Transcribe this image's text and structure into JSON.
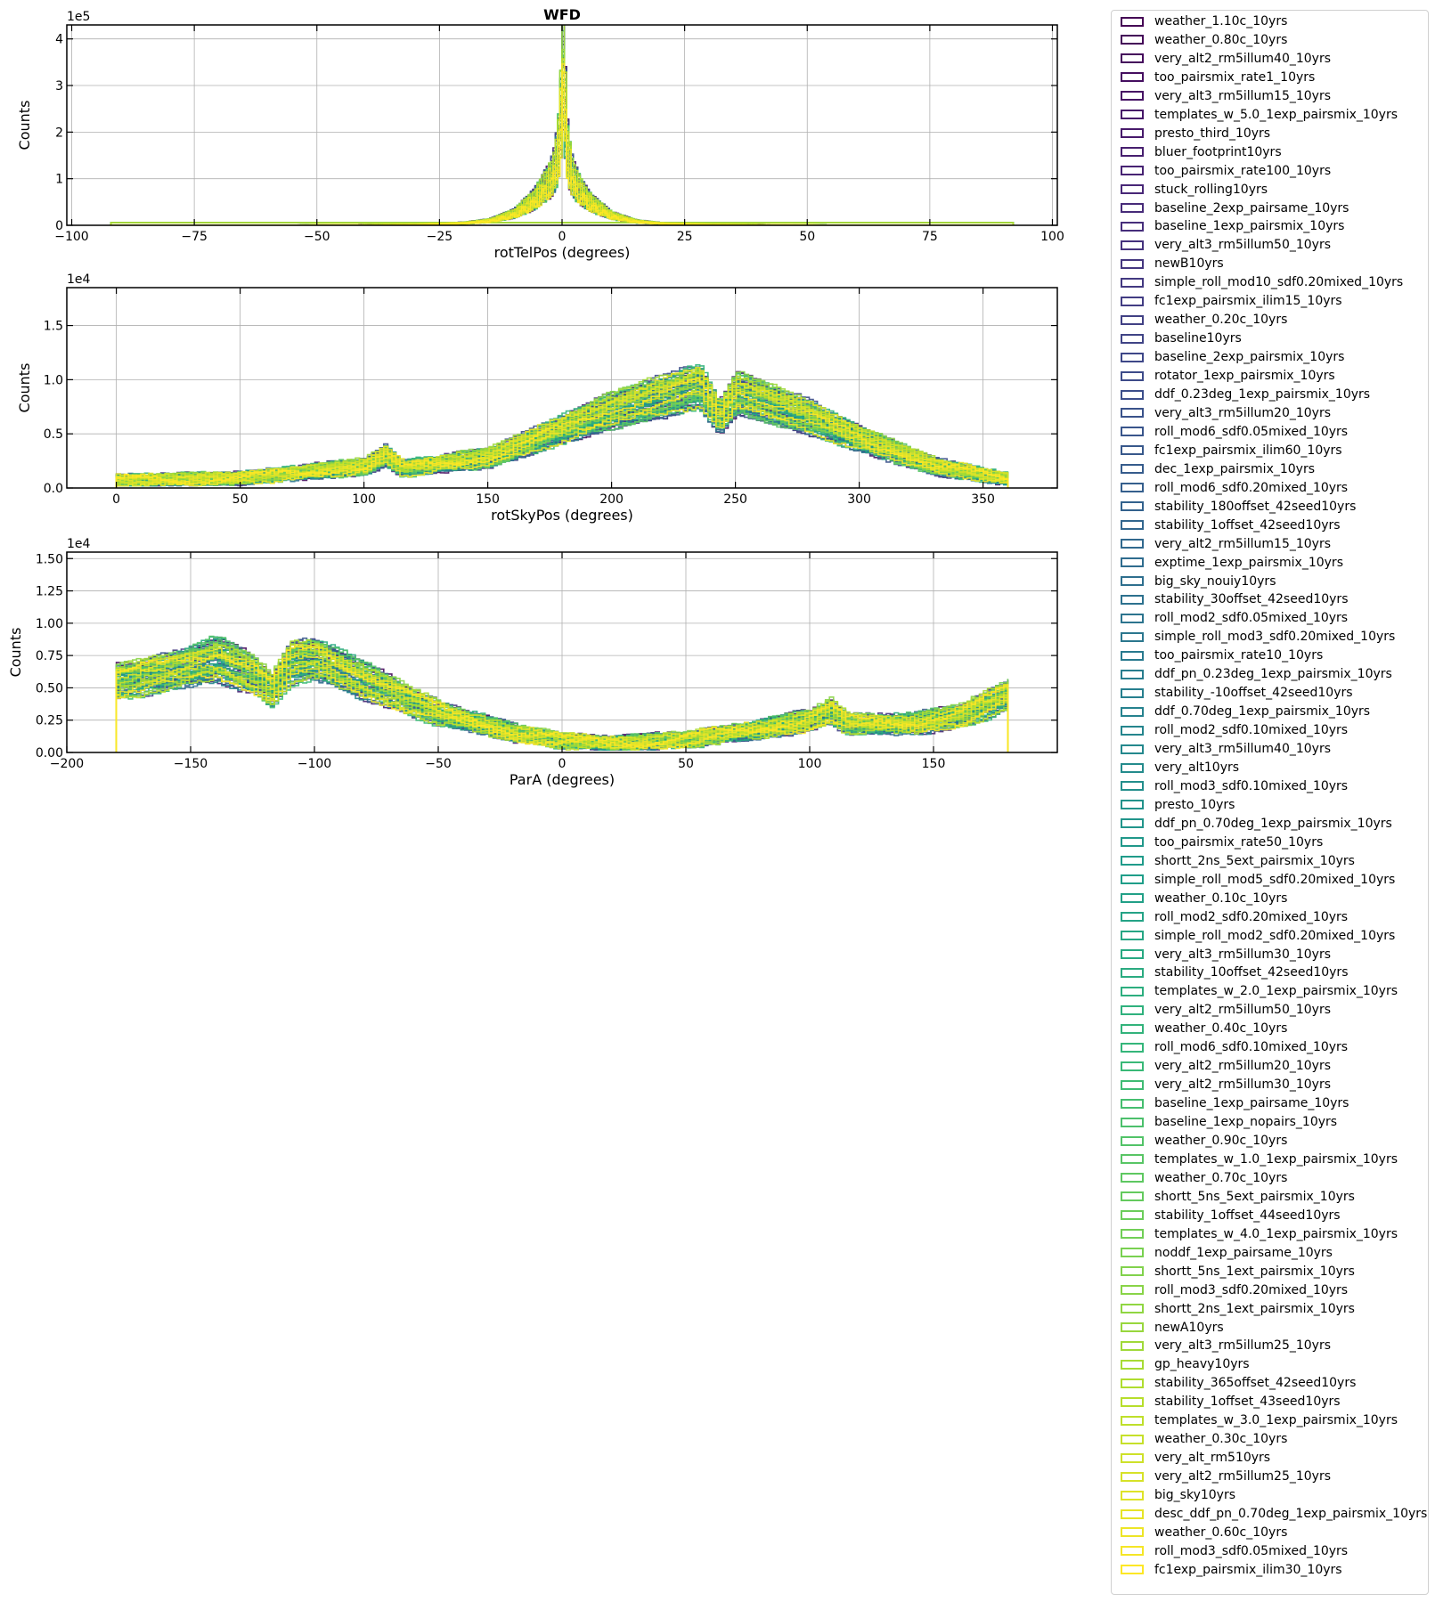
{
  "chart_data": [
    {
      "type": "histogram",
      "title": "WFD",
      "xlabel": "rotTelPos (degrees)",
      "ylabel": "Counts",
      "y_offset_text": "1e5",
      "xlim": [
        -101,
        101
      ],
      "ylim": [
        0,
        4.3
      ],
      "xticks": [
        -100,
        -75,
        -50,
        -25,
        0,
        25,
        50,
        75,
        100
      ],
      "xtick_labels": [
        "−100",
        "−75",
        "−50",
        "−25",
        "0",
        "25",
        "50",
        "75",
        "100"
      ],
      "yticks": [
        0,
        1,
        2,
        3,
        4
      ],
      "ytick_labels": [
        "0",
        "1",
        "2",
        "3",
        "4"
      ],
      "grid": true,
      "profile": {
        "x": [
          -90,
          -60,
          -30,
          -20,
          -15,
          -10,
          -6,
          -4,
          -2,
          -1,
          -0.5,
          0,
          0.5,
          1,
          2,
          4,
          6,
          10,
          15,
          20,
          30,
          60,
          90
        ],
        "y": [
          0.0,
          0.0,
          0.02,
          0.06,
          0.12,
          0.3,
          0.65,
          0.95,
          1.3,
          1.9,
          2.8,
          3.9,
          2.8,
          1.8,
          1.2,
          0.8,
          0.55,
          0.25,
          0.1,
          0.05,
          0.02,
          0.0,
          0.0
        ]
      },
      "flat_series_level": 0.055,
      "peak_max": 4.05
    },
    {
      "type": "histogram",
      "xlabel": "rotSkyPos (degrees)",
      "ylabel": "Counts",
      "y_offset_text": "1e4",
      "xlim": [
        -20,
        380
      ],
      "ylim": [
        0,
        1.85
      ],
      "xticks": [
        0,
        50,
        100,
        150,
        200,
        250,
        300,
        350
      ],
      "xtick_labels": [
        "0",
        "50",
        "100",
        "150",
        "200",
        "250",
        "300",
        "350"
      ],
      "yticks": [
        0,
        0.5,
        1.0,
        1.5
      ],
      "ytick_labels": [
        "0.0",
        "0.5",
        "1.0",
        "1.5"
      ],
      "grid": true,
      "profile": {
        "x": [
          0,
          50,
          100,
          108,
          115,
          150,
          180,
          200,
          220,
          235,
          243,
          250,
          258,
          280,
          300,
          330,
          360
        ],
        "y": [
          0.07,
          0.09,
          0.2,
          0.3,
          0.18,
          0.28,
          0.55,
          0.72,
          0.85,
          0.95,
          0.65,
          0.88,
          0.82,
          0.65,
          0.45,
          0.2,
          0.08
        ]
      }
    },
    {
      "type": "histogram",
      "xlabel": "ParA (degrees)",
      "ylabel": "Counts",
      "y_offset_text": "1e4",
      "xlim": [
        -200,
        200
      ],
      "ylim": [
        0,
        1.55
      ],
      "xticks": [
        -200,
        -150,
        -100,
        -50,
        0,
        50,
        100,
        150
      ],
      "xtick_labels": [
        "−200",
        "−150",
        "−100",
        "−50",
        "0",
        "50",
        "100",
        "150"
      ],
      "yticks": [
        0,
        0.25,
        0.5,
        0.75,
        1.0,
        1.25,
        1.5
      ],
      "ytick_labels": [
        "0.00",
        "0.25",
        "0.50",
        "0.75",
        "1.00",
        "1.25",
        "1.50"
      ],
      "grid": true,
      "profile": {
        "x": [
          -180,
          -160,
          -140,
          -125,
          -118,
          -110,
          -100,
          -80,
          -50,
          -20,
          0,
          20,
          50,
          80,
          100,
          108,
          115,
          140,
          160,
          180
        ],
        "y": [
          0.55,
          0.62,
          0.72,
          0.6,
          0.48,
          0.7,
          0.72,
          0.55,
          0.3,
          0.15,
          0.09,
          0.07,
          0.1,
          0.18,
          0.25,
          0.32,
          0.22,
          0.22,
          0.28,
          0.45
        ]
      }
    }
  ],
  "legend": {
    "entries": [
      "weather_1.10c_10yrs",
      "weather_0.80c_10yrs",
      "very_alt2_rm5illum40_10yrs",
      "too_pairsmix_rate1_10yrs",
      "very_alt3_rm5illum15_10yrs",
      "templates_w_5.0_1exp_pairsmix_10yrs",
      "presto_third_10yrs",
      "bluer_footprint10yrs",
      "too_pairsmix_rate100_10yrs",
      "stuck_rolling10yrs",
      "baseline_2exp_pairsame_10yrs",
      "baseline_1exp_pairsmix_10yrs",
      "very_alt3_rm5illum50_10yrs",
      "newB10yrs",
      "simple_roll_mod10_sdf0.20mixed_10yrs",
      "fc1exp_pairsmix_ilim15_10yrs",
      "weather_0.20c_10yrs",
      "baseline10yrs",
      "baseline_2exp_pairsmix_10yrs",
      "rotator_1exp_pairsmix_10yrs",
      "ddf_0.23deg_1exp_pairsmix_10yrs",
      "very_alt3_rm5illum20_10yrs",
      "roll_mod6_sdf0.05mixed_10yrs",
      "fc1exp_pairsmix_ilim60_10yrs",
      "dec_1exp_pairsmix_10yrs",
      "roll_mod6_sdf0.20mixed_10yrs",
      "stability_180offset_42seed10yrs",
      "stability_1offset_42seed10yrs",
      "very_alt2_rm5illum15_10yrs",
      "exptime_1exp_pairsmix_10yrs",
      "big_sky_nouiy10yrs",
      "stability_30offset_42seed10yrs",
      "roll_mod2_sdf0.05mixed_10yrs",
      "simple_roll_mod3_sdf0.20mixed_10yrs",
      "too_pairsmix_rate10_10yrs",
      "ddf_pn_0.23deg_1exp_pairsmix_10yrs",
      "stability_-10offset_42seed10yrs",
      "ddf_0.70deg_1exp_pairsmix_10yrs",
      "roll_mod2_sdf0.10mixed_10yrs",
      "very_alt3_rm5illum40_10yrs",
      "very_alt10yrs",
      "roll_mod3_sdf0.10mixed_10yrs",
      "presto_10yrs",
      "ddf_pn_0.70deg_1exp_pairsmix_10yrs",
      "too_pairsmix_rate50_10yrs",
      "shortt_2ns_5ext_pairsmix_10yrs",
      "simple_roll_mod5_sdf0.20mixed_10yrs",
      "weather_0.10c_10yrs",
      "roll_mod2_sdf0.20mixed_10yrs",
      "simple_roll_mod2_sdf0.20mixed_10yrs",
      "very_alt3_rm5illum30_10yrs",
      "stability_10offset_42seed10yrs",
      "templates_w_2.0_1exp_pairsmix_10yrs",
      "very_alt2_rm5illum50_10yrs",
      "weather_0.40c_10yrs",
      "roll_mod6_sdf0.10mixed_10yrs",
      "very_alt2_rm5illum20_10yrs",
      "very_alt2_rm5illum30_10yrs",
      "baseline_1exp_pairsame_10yrs",
      "baseline_1exp_nopairs_10yrs",
      "weather_0.90c_10yrs",
      "templates_w_1.0_1exp_pairsmix_10yrs",
      "weather_0.70c_10yrs",
      "shortt_5ns_5ext_pairsmix_10yrs",
      "stability_1offset_44seed10yrs",
      "templates_w_4.0_1exp_pairsmix_10yrs",
      "noddf_1exp_pairsame_10yrs",
      "shortt_5ns_1ext_pairsmix_10yrs",
      "roll_mod3_sdf0.20mixed_10yrs",
      "shortt_2ns_1ext_pairsmix_10yrs",
      "newA10yrs",
      "very_alt3_rm5illum25_10yrs",
      "gp_heavy10yrs",
      "stability_365offset_42seed10yrs",
      "stability_1offset_43seed10yrs",
      "templates_w_3.0_1exp_pairsmix_10yrs",
      "weather_0.30c_10yrs",
      "very_alt_rm510yrs",
      "very_alt2_rm5illum25_10yrs",
      "big_sky10yrs",
      "desc_ddf_pn_0.70deg_1exp_pairsmix_10yrs",
      "weather_0.60c_10yrs",
      "roll_mod3_sdf0.05mixed_10yrs",
      "fc1exp_pairsmix_ilim30_10yrs"
    ],
    "colormap": "viridis",
    "colormap_stops": [
      "#440154",
      "#482878",
      "#3e4989",
      "#31688e",
      "#26828e",
      "#1f9e89",
      "#35b779",
      "#6ece58",
      "#b5de2b",
      "#fde725"
    ]
  }
}
